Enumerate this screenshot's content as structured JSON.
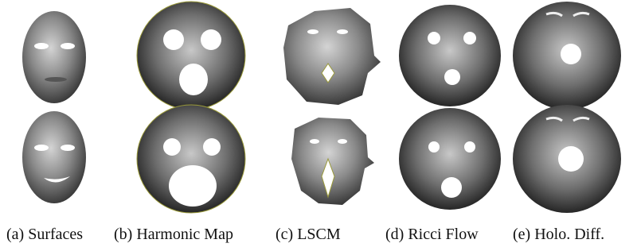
{
  "figure": {
    "panels": [
      {
        "caption": "(a) Surfaces"
      },
      {
        "caption": "(b) Harmonic Map"
      },
      {
        "caption": "(c) LSCM"
      },
      {
        "caption": "(d) Ricci Flow"
      },
      {
        "caption": "(e) Holo. Diff."
      }
    ]
  }
}
